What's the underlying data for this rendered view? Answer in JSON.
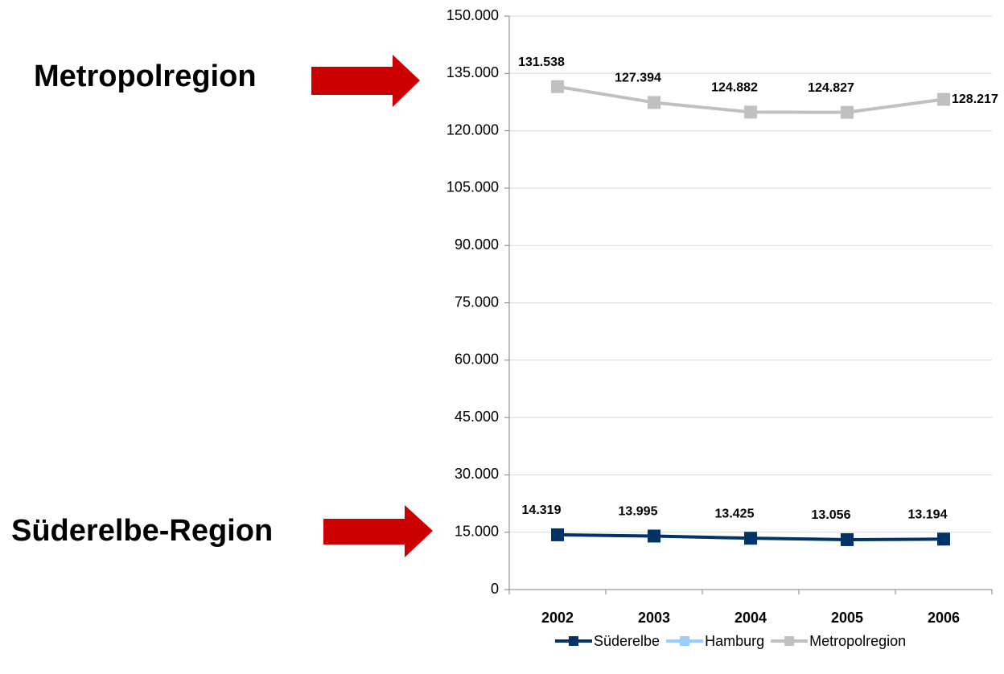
{
  "chart_data": {
    "type": "line",
    "categories": [
      "2002",
      "2003",
      "2004",
      "2005",
      "2006"
    ],
    "series": [
      {
        "name": "Süderelbe",
        "color": "#003366",
        "values": [
          14319,
          13995,
          13425,
          13056,
          13194
        ],
        "value_labels": [
          "14.319",
          "13.995",
          "13.425",
          "13.056",
          "13.194"
        ]
      },
      {
        "name": "Hamburg",
        "color": "#99ccff",
        "values": [
          null,
          null,
          null,
          null,
          null
        ]
      },
      {
        "name": "Metropolregion",
        "color": "#c0c0c0",
        "values": [
          131538,
          127394,
          124882,
          124827,
          128217
        ],
        "value_labels": [
          "131.538",
          "127.394",
          "124.882",
          "124.827",
          "128.217"
        ]
      }
    ],
    "ylim": [
      0,
      150000
    ],
    "yticks": [
      0,
      {
        "value": 15000,
        "label": "15.000"
      },
      {
        "value": 30000,
        "label": "30.000"
      },
      {
        "value": 45000,
        "label": "45.000"
      },
      {
        "value": 60000,
        "label": "60.000"
      },
      {
        "value": 75000,
        "label": "75.000"
      },
      {
        "value": 90000,
        "label": "90.000"
      },
      {
        "value": 105000,
        "label": "105.000"
      },
      {
        "value": 120000,
        "label": "120.000"
      },
      {
        "value": 135000,
        "label": "135.000"
      },
      {
        "value": 150000,
        "label": "150.000"
      }
    ],
    "grid": true,
    "legend": "bottom",
    "annotations": [
      "Metropolregion",
      "Süderelbe-Region"
    ]
  }
}
